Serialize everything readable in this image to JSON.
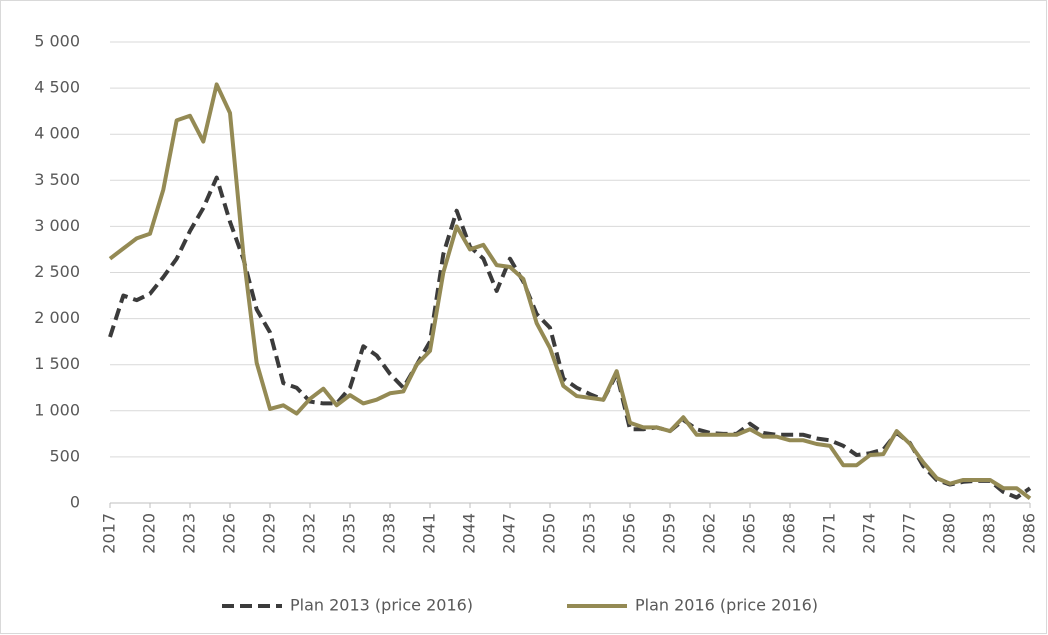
{
  "chart_data": {
    "type": "line",
    "x": [
      2017,
      2018,
      2019,
      2020,
      2021,
      2022,
      2023,
      2024,
      2025,
      2026,
      2027,
      2028,
      2029,
      2030,
      2031,
      2032,
      2033,
      2034,
      2035,
      2036,
      2037,
      2038,
      2039,
      2040,
      2041,
      2042,
      2043,
      2044,
      2045,
      2046,
      2047,
      2048,
      2049,
      2050,
      2051,
      2052,
      2053,
      2054,
      2055,
      2056,
      2057,
      2058,
      2059,
      2060,
      2061,
      2062,
      2063,
      2064,
      2065,
      2066,
      2067,
      2068,
      2069,
      2070,
      2071,
      2072,
      2073,
      2074,
      2075,
      2076,
      2077,
      2078,
      2079,
      2080,
      2081,
      2082,
      2083,
      2084,
      2085,
      2086
    ],
    "series": [
      {
        "name": "Plan 2013 (price 2016)",
        "color": "#3b3b3b",
        "dashed": true,
        "values": [
          1800,
          2250,
          2200,
          2270,
          2450,
          2650,
          2950,
          3200,
          3530,
          3050,
          2650,
          2100,
          1850,
          1300,
          1250,
          1100,
          1080,
          1080,
          1250,
          1700,
          1600,
          1400,
          1250,
          1500,
          1750,
          2700,
          3170,
          2780,
          2650,
          2300,
          2650,
          2400,
          2050,
          1900,
          1350,
          1250,
          1180,
          1120,
          1400,
          800,
          800,
          820,
          780,
          900,
          800,
          760,
          750,
          750,
          860,
          760,
          740,
          740,
          740,
          700,
          680,
          620,
          520,
          540,
          580,
          760,
          650,
          400,
          250,
          200,
          230,
          240,
          240,
          120,
          60,
          160
        ]
      },
      {
        "name": "Plan 2016 (price 2016)",
        "color": "#948a54",
        "dashed": false,
        "values": [
          2650,
          2760,
          2870,
          2920,
          3400,
          4150,
          4200,
          3920,
          4540,
          4230,
          2700,
          1520,
          1020,
          1060,
          970,
          1130,
          1240,
          1060,
          1170,
          1080,
          1120,
          1190,
          1210,
          1500,
          1650,
          2500,
          3000,
          2750,
          2800,
          2580,
          2560,
          2430,
          1950,
          1680,
          1270,
          1160,
          1140,
          1120,
          1430,
          870,
          820,
          820,
          780,
          930,
          740,
          740,
          740,
          740,
          800,
          720,
          720,
          680,
          680,
          640,
          620,
          410,
          410,
          520,
          530,
          780,
          640,
          440,
          270,
          210,
          250,
          250,
          250,
          160,
          160,
          50
        ]
      }
    ],
    "xlim": [
      2017,
      2086
    ],
    "xticks": [
      2017,
      2020,
      2023,
      2026,
      2029,
      2032,
      2035,
      2038,
      2041,
      2044,
      2047,
      2050,
      2053,
      2056,
      2059,
      2062,
      2065,
      2068,
      2071,
      2074,
      2077,
      2080,
      2083,
      2086
    ],
    "ylim": [
      0,
      5000
    ],
    "yticks": [
      0,
      {
        "value": 500,
        "label": "500"
      },
      {
        "value": 1000,
        "label": "1 000"
      },
      {
        "value": 1500,
        "label": "1 500"
      },
      {
        "value": 2000,
        "label": "2 000"
      },
      {
        "value": 2500,
        "label": "2 500"
      },
      {
        "value": 3000,
        "label": "3 000"
      },
      {
        "value": 3500,
        "label": "3 500"
      },
      {
        "value": 4000,
        "label": "4 000"
      },
      {
        "value": 4500,
        "label": "4 500"
      },
      {
        "value": 5000,
        "label": "5 000"
      }
    ],
    "grid": true,
    "legend": "bottom"
  }
}
